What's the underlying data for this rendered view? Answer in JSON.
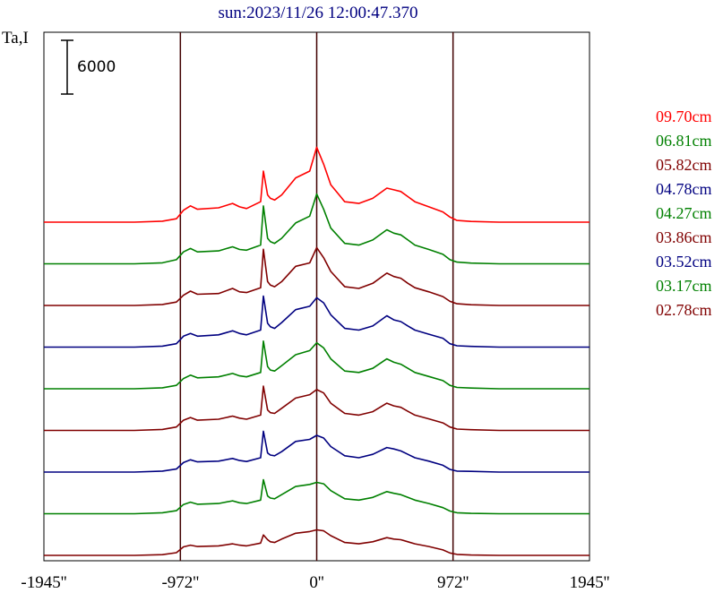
{
  "chart_data": {
    "type": "line",
    "title": "sun:2023/11/26 12:00:47.370",
    "ylabel": "Ta,I",
    "scale_bar_label": "6000",
    "scale_bar_value": 6000,
    "x_ticks": [
      {
        "value": -1945,
        "label": "-1945''"
      },
      {
        "value": -972,
        "label": "-972''"
      },
      {
        "value": 0,
        "label": "0''"
      },
      {
        "value": 972,
        "label": "972''"
      },
      {
        "value": 1945,
        "label": "1945''"
      }
    ],
    "xlim": [
      -1945,
      1945
    ],
    "vertical_markers": [
      -972,
      0,
      972
    ],
    "series": [
      {
        "name": "09.70cm",
        "color": "#ff0000",
        "offset_index": 8
      },
      {
        "name": "06.81cm",
        "color": "#008000",
        "offset_index": 7
      },
      {
        "name": "05.82cm",
        "color": "#800000",
        "offset_index": 6
      },
      {
        "name": "04.78cm",
        "color": "#000080",
        "offset_index": 5
      },
      {
        "name": "04.27cm",
        "color": "#008000",
        "offset_index": 4
      },
      {
        "name": "03.86cm",
        "color": "#800000",
        "offset_index": 3
      },
      {
        "name": "03.52cm",
        "color": "#000080",
        "offset_index": 2
      },
      {
        "name": "03.17cm",
        "color": "#008000",
        "offset_index": 1
      },
      {
        "name": "02.78cm",
        "color": "#800000",
        "offset_index": 0
      }
    ],
    "profile_x": [
      -1945,
      -1700,
      -1300,
      -1100,
      -1000,
      -950,
      -900,
      -850,
      -700,
      -600,
      -550,
      -500,
      -400,
      -380,
      -350,
      -330,
      -300,
      -250,
      -150,
      -50,
      0,
      50,
      100,
      200,
      300,
      400,
      500,
      550,
      600,
      650,
      700,
      800,
      900,
      950,
      1000,
      1100,
      1300,
      1945
    ],
    "traces": [
      [
        0,
        0,
        0,
        3,
        10,
        35,
        48,
        38,
        42,
        55,
        45,
        40,
        60,
        150,
        80,
        70,
        65,
        80,
        130,
        150,
        220,
        170,
        110,
        60,
        55,
        70,
        100,
        95,
        90,
        75,
        60,
        45,
        30,
        15,
        5,
        2,
        0,
        0
      ],
      [
        0,
        0,
        0,
        3,
        12,
        35,
        45,
        35,
        38,
        50,
        42,
        40,
        55,
        170,
        75,
        65,
        60,
        75,
        120,
        140,
        205,
        160,
        105,
        60,
        55,
        70,
        100,
        90,
        85,
        70,
        55,
        42,
        28,
        12,
        5,
        2,
        0,
        0
      ],
      [
        0,
        0,
        0,
        3,
        10,
        30,
        42,
        33,
        35,
        50,
        40,
        38,
        52,
        165,
        70,
        60,
        55,
        70,
        115,
        125,
        170,
        140,
        100,
        55,
        50,
        65,
        95,
        85,
        80,
        65,
        52,
        40,
        26,
        12,
        5,
        2,
        0,
        0
      ],
      [
        0,
        0,
        0,
        3,
        10,
        32,
        40,
        32,
        36,
        48,
        40,
        36,
        50,
        150,
        70,
        60,
        55,
        72,
        110,
        120,
        145,
        130,
        95,
        55,
        50,
        62,
        92,
        80,
        75,
        62,
        50,
        38,
        26,
        10,
        4,
        2,
        0,
        0
      ],
      [
        0,
        0,
        0,
        3,
        10,
        30,
        40,
        32,
        35,
        45,
        38,
        35,
        48,
        140,
        65,
        55,
        52,
        68,
        100,
        112,
        135,
        120,
        88,
        52,
        48,
        60,
        88,
        78,
        72,
        60,
        48,
        36,
        24,
        10,
        4,
        2,
        0,
        0
      ],
      [
        0,
        0,
        0,
        3,
        10,
        30,
        38,
        30,
        33,
        42,
        36,
        33,
        45,
        130,
        60,
        52,
        50,
        65,
        95,
        105,
        120,
        110,
        80,
        50,
        45,
        55,
        80,
        72,
        68,
        56,
        45,
        34,
        22,
        10,
        4,
        2,
        0,
        0
      ],
      [
        0,
        0,
        0,
        3,
        9,
        28,
        36,
        30,
        32,
        40,
        34,
        31,
        42,
        120,
        56,
        50,
        48,
        60,
        90,
        96,
        108,
        100,
        75,
        48,
        42,
        52,
        72,
        68,
        62,
        52,
        42,
        32,
        20,
        8,
        3,
        2,
        0,
        0
      ],
      [
        0,
        0,
        0,
        3,
        9,
        27,
        34,
        28,
        30,
        38,
        32,
        30,
        40,
        100,
        52,
        46,
        44,
        56,
        80,
        86,
        92,
        88,
        68,
        44,
        40,
        48,
        65,
        60,
        56,
        48,
        40,
        30,
        18,
        8,
        3,
        1,
        0,
        0
      ],
      [
        0,
        0,
        0,
        2,
        8,
        25,
        30,
        26,
        28,
        34,
        30,
        28,
        36,
        60,
        46,
        40,
        38,
        48,
        65,
        70,
        75,
        72,
        58,
        38,
        34,
        40,
        52,
        48,
        46,
        40,
        34,
        26,
        16,
        7,
        3,
        1,
        0,
        0
      ]
    ]
  }
}
